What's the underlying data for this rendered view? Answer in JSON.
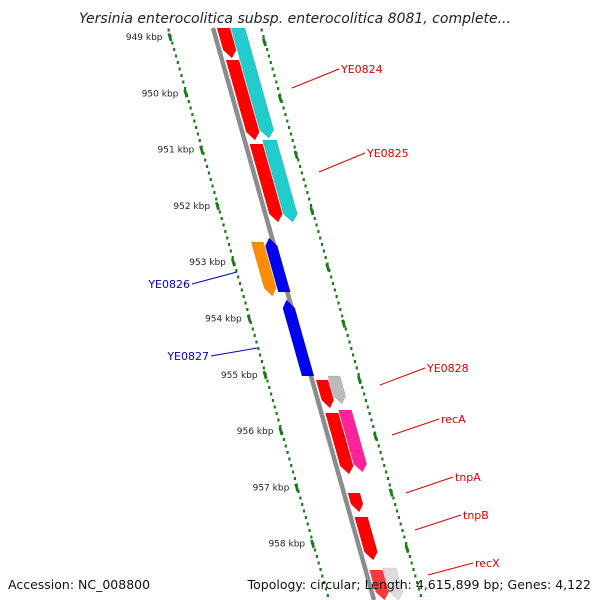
{
  "title": "Yersinia enterocolitica subsp. enterocolitica 8081, complete...",
  "ticks": [
    "949 kbp",
    "950 kbp",
    "951 kbp",
    "952 kbp",
    "953 kbp",
    "954 kbp",
    "955 kbp",
    "956 kbp",
    "957 kbp",
    "958 kbp"
  ],
  "labels": [
    {
      "text": "YE0824",
      "color": "#dd0000",
      "side": "right"
    },
    {
      "text": "YE0825",
      "color": "#dd0000",
      "side": "right"
    },
    {
      "text": "YE0826",
      "color": "#0000bb",
      "side": "left"
    },
    {
      "text": "YE0827",
      "color": "#0000bb",
      "side": "left"
    },
    {
      "text": "YE0828",
      "color": "#dd0000",
      "side": "right"
    },
    {
      "text": "recA",
      "color": "#dd0000",
      "side": "right"
    },
    {
      "text": "tnpA",
      "color": "#dd0000",
      "side": "right"
    },
    {
      "text": "tnpB",
      "color": "#dd0000",
      "side": "right"
    },
    {
      "text": "recX",
      "color": "#dd0000",
      "side": "right"
    }
  ],
  "colors": {
    "backbone": "#8c8c8c",
    "tick_dots": "#1a7a1a",
    "forward_cds": "#ff0000",
    "reverse_cds": "#0000ee",
    "cog_cyan": "#22cccc",
    "cog_orange": "#ff8c00",
    "cog_magenta": "#ff2299",
    "cog_grey": "#bbbbbb"
  },
  "footer": {
    "accession": "Accession: NC_008800",
    "stats": "Topology: circular; Length: 4,615,899 bp; Genes: 4,122"
  }
}
